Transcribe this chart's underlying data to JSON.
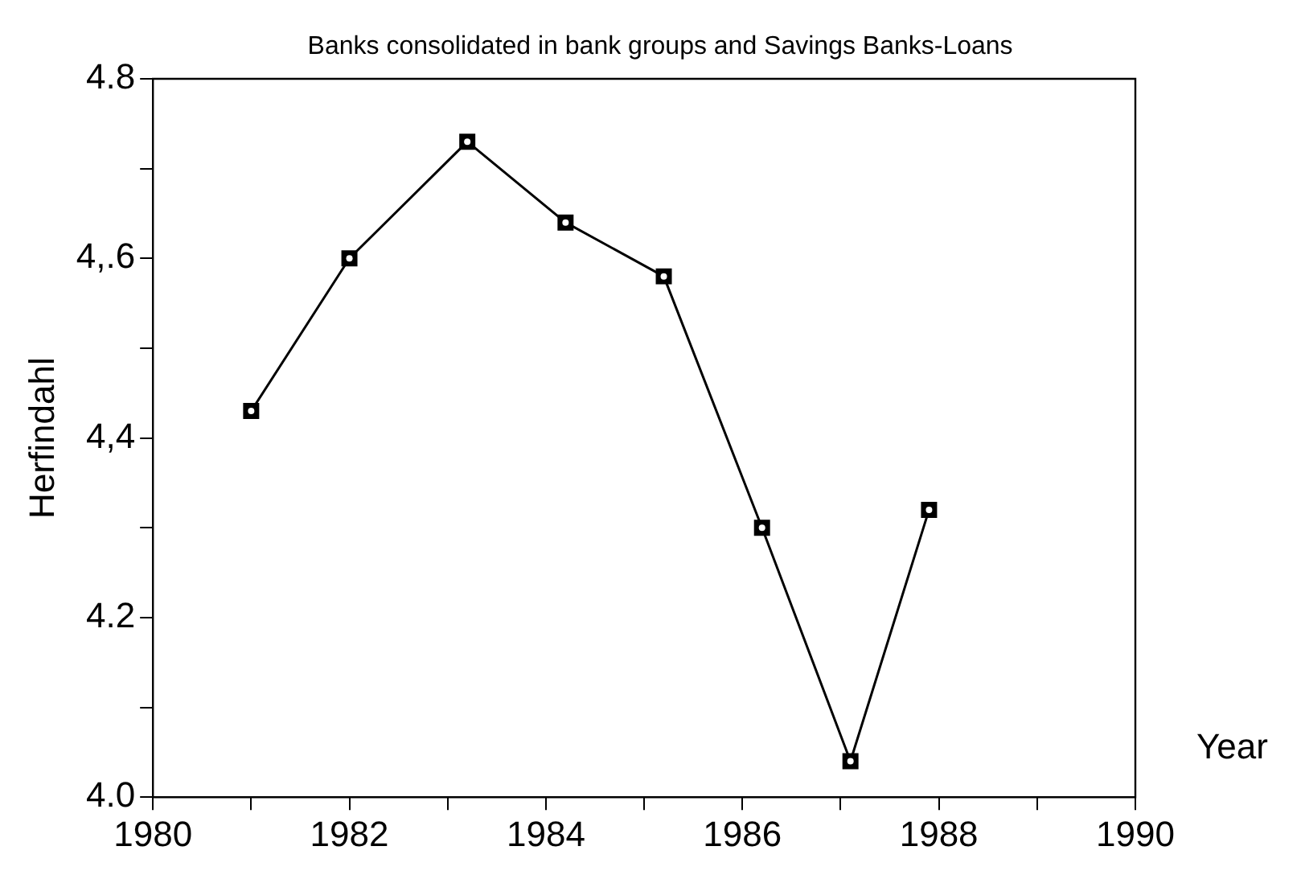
{
  "chart_data": {
    "type": "line",
    "title": "Banks consolidated in bank groups and Savings Banks-Loans",
    "xlabel": "Year",
    "ylabel": "Herfindahl",
    "x": [
      1981.0,
      1982.0,
      1983.2,
      1984.2,
      1985.2,
      1986.2,
      1987.1,
      1987.9
    ],
    "series": [
      {
        "color": "#000000",
        "values": [
          4.43,
          4.6,
          4.73,
          4.64,
          4.58,
          4.3,
          4.04,
          4.32
        ]
      }
    ],
    "xlim": [
      1980,
      1990
    ],
    "xticks": [
      1980,
      {
        "value": 1981,
        "label": null
      },
      1982,
      {
        "value": 1983,
        "label": null
      },
      1984,
      {
        "value": 1985,
        "label": null
      },
      1986,
      {
        "value": 1987,
        "label": null
      },
      1988,
      {
        "value": 1989,
        "label": null
      },
      1990
    ],
    "ylim": [
      4.0,
      4.8
    ],
    "yticks": [
      {
        "value": 4.0,
        "label": "4.0"
      },
      {
        "value": 4.1,
        "label": null
      },
      {
        "value": 4.2,
        "label": "4.2"
      },
      {
        "value": 4.3,
        "label": null
      },
      {
        "value": 4.4,
        "label": "4,4"
      },
      {
        "value": 4.5,
        "label": null
      },
      {
        "value": 4.6,
        "label": "4,.6"
      },
      {
        "value": 4.7,
        "label": null
      },
      {
        "value": 4.8,
        "label": "4.8"
      }
    ],
    "grid": false,
    "legend": false,
    "marker": "square",
    "line_style": "solid"
  }
}
